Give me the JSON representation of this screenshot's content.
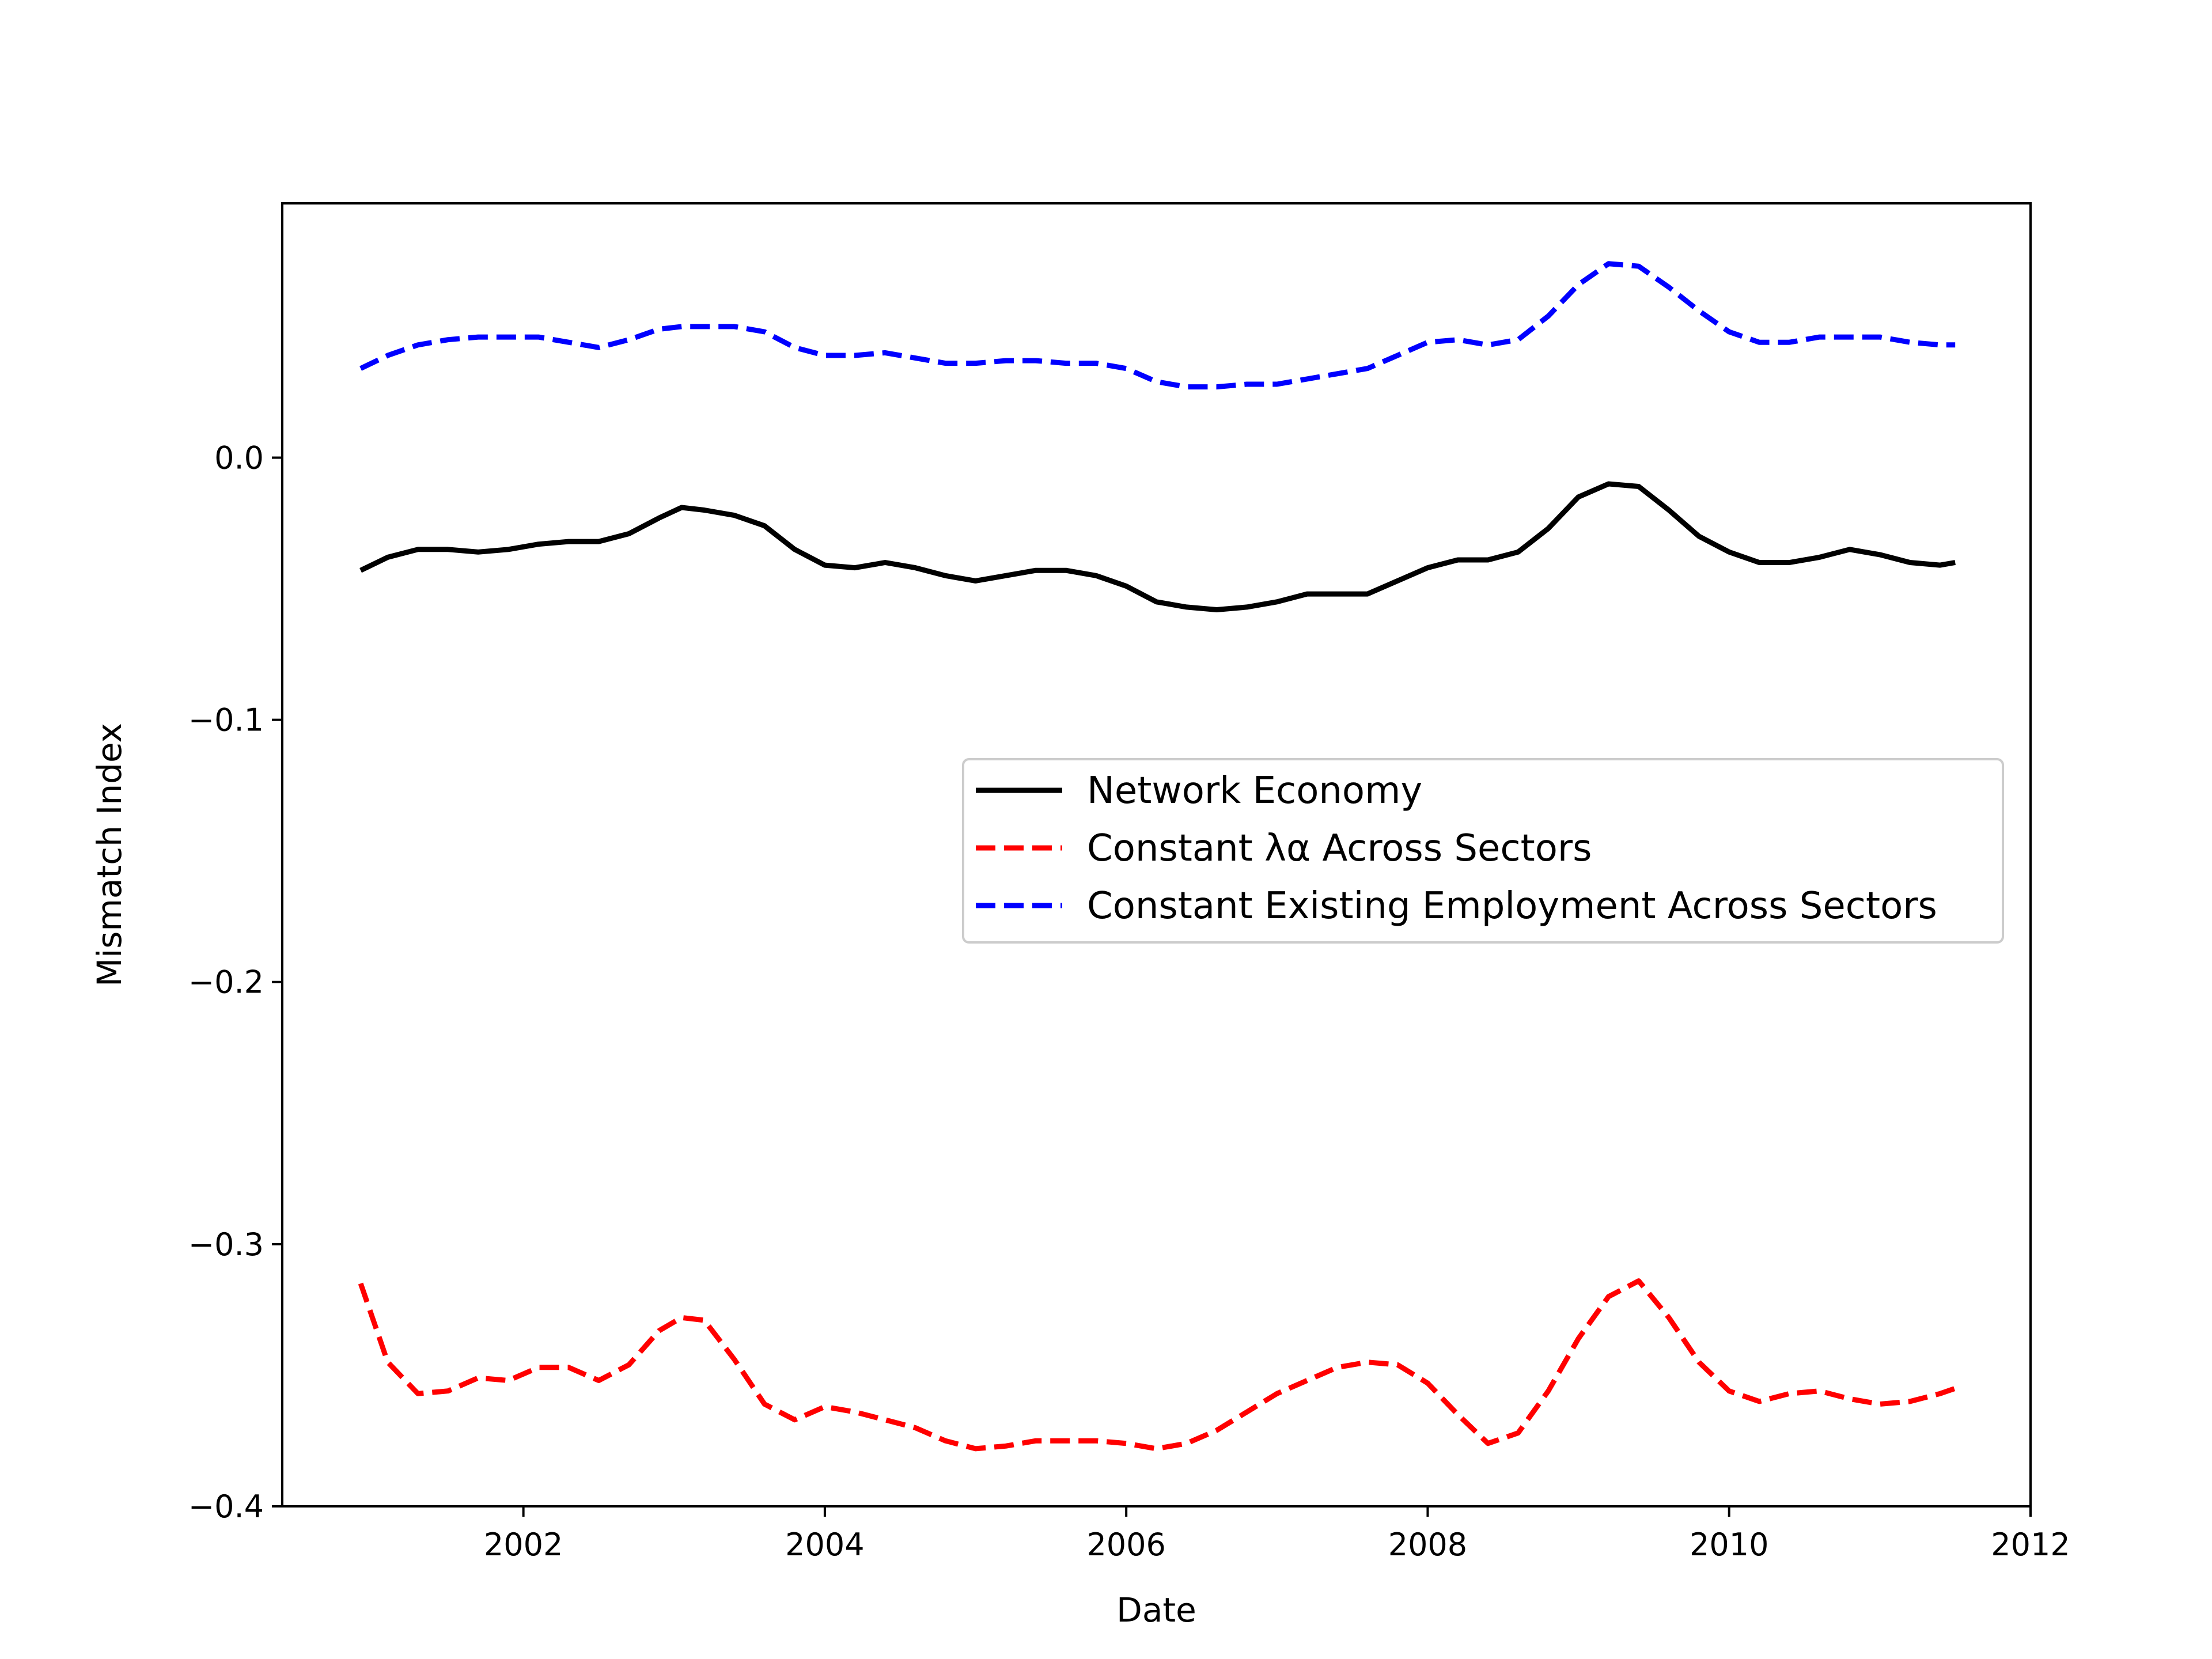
{
  "chart_data": {
    "type": "line",
    "title": "",
    "xlabel": "Date",
    "ylabel": "Mismatch Index",
    "xlim": [
      2000.4,
      2012.0
    ],
    "ylim": [
      -0.4,
      0.097
    ],
    "x_ticks": [
      2002,
      2004,
      2006,
      2008,
      2010,
      2012
    ],
    "x_tick_labels": [
      "2002",
      "2004",
      "2006",
      "2008",
      "2010",
      "2012"
    ],
    "y_ticks": [
      0.0,
      -0.1,
      -0.2,
      -0.3,
      -0.4
    ],
    "y_tick_labels": [
      "0.0",
      "−0.1",
      "−0.2",
      "−0.3",
      "−0.4"
    ],
    "grid": false,
    "legend_position": "center-right",
    "series": [
      {
        "name": "Network Economy",
        "color": "#000000",
        "style": "solid",
        "x": [
          2000.92,
          2001.1,
          2001.3,
          2001.5,
          2001.7,
          2001.9,
          2002.1,
          2002.3,
          2002.5,
          2002.7,
          2002.9,
          2003.05,
          2003.2,
          2003.4,
          2003.6,
          2003.8,
          2004.0,
          2004.2,
          2004.4,
          2004.6,
          2004.8,
          2005.0,
          2005.2,
          2005.4,
          2005.6,
          2005.8,
          2006.0,
          2006.2,
          2006.4,
          2006.6,
          2006.8,
          2007.0,
          2007.2,
          2007.4,
          2007.6,
          2007.8,
          2008.0,
          2008.2,
          2008.4,
          2008.6,
          2008.8,
          2009.0,
          2009.2,
          2009.4,
          2009.6,
          2009.8,
          2010.0,
          2010.2,
          2010.4,
          2010.6,
          2010.8,
          2011.0,
          2011.2,
          2011.4,
          2011.5
        ],
        "values": [
          -0.043,
          -0.038,
          -0.035,
          -0.035,
          -0.036,
          -0.035,
          -0.033,
          -0.032,
          -0.032,
          -0.029,
          -0.023,
          -0.019,
          -0.02,
          -0.022,
          -0.026,
          -0.035,
          -0.041,
          -0.042,
          -0.04,
          -0.042,
          -0.045,
          -0.047,
          -0.045,
          -0.043,
          -0.043,
          -0.045,
          -0.049,
          -0.055,
          -0.057,
          -0.058,
          -0.057,
          -0.055,
          -0.052,
          -0.052,
          -0.052,
          -0.047,
          -0.042,
          -0.039,
          -0.039,
          -0.036,
          -0.027,
          -0.015,
          -0.01,
          -0.011,
          -0.02,
          -0.03,
          -0.036,
          -0.04,
          -0.04,
          -0.038,
          -0.035,
          -0.037,
          -0.04,
          -0.041,
          -0.04
        ]
      },
      {
        "name": "Constant λα Across Sectors",
        "color": "#ff0000",
        "style": "dashed",
        "x": [
          2000.92,
          2001.1,
          2001.3,
          2001.5,
          2001.7,
          2001.9,
          2002.1,
          2002.3,
          2002.5,
          2002.7,
          2002.9,
          2003.05,
          2003.2,
          2003.4,
          2003.6,
          2003.8,
          2004.0,
          2004.2,
          2004.4,
          2004.6,
          2004.8,
          2005.0,
          2005.2,
          2005.4,
          2005.6,
          2005.8,
          2006.0,
          2006.2,
          2006.4,
          2006.6,
          2006.8,
          2007.0,
          2007.2,
          2007.4,
          2007.6,
          2007.8,
          2008.0,
          2008.2,
          2008.4,
          2008.6,
          2008.8,
          2009.0,
          2009.2,
          2009.4,
          2009.6,
          2009.8,
          2010.0,
          2010.2,
          2010.4,
          2010.6,
          2010.8,
          2011.0,
          2011.2,
          2011.4,
          2011.5
        ],
        "values": [
          -0.315,
          -0.345,
          -0.357,
          -0.356,
          -0.351,
          -0.352,
          -0.347,
          -0.347,
          -0.352,
          -0.346,
          -0.333,
          -0.328,
          -0.329,
          -0.344,
          -0.361,
          -0.367,
          -0.362,
          -0.364,
          -0.367,
          -0.37,
          -0.375,
          -0.378,
          -0.377,
          -0.375,
          -0.375,
          -0.375,
          -0.376,
          -0.378,
          -0.376,
          -0.371,
          -0.364,
          -0.357,
          -0.352,
          -0.347,
          -0.345,
          -0.346,
          -0.353,
          -0.365,
          -0.376,
          -0.372,
          -0.356,
          -0.336,
          -0.32,
          -0.314,
          -0.328,
          -0.345,
          -0.356,
          -0.36,
          -0.357,
          -0.356,
          -0.359,
          -0.361,
          -0.36,
          -0.357,
          -0.355
        ]
      },
      {
        "name": "Constant Existing Employment Across Sectors",
        "color": "#0000ff",
        "style": "dashed",
        "x": [
          2000.92,
          2001.1,
          2001.3,
          2001.5,
          2001.7,
          2001.9,
          2002.1,
          2002.3,
          2002.5,
          2002.7,
          2002.9,
          2003.05,
          2003.2,
          2003.4,
          2003.6,
          2003.8,
          2004.0,
          2004.2,
          2004.4,
          2004.6,
          2004.8,
          2005.0,
          2005.2,
          2005.4,
          2005.6,
          2005.8,
          2006.0,
          2006.2,
          2006.4,
          2006.6,
          2006.8,
          2007.0,
          2007.2,
          2007.4,
          2007.6,
          2007.8,
          2008.0,
          2008.2,
          2008.4,
          2008.6,
          2008.8,
          2009.0,
          2009.2,
          2009.4,
          2009.6,
          2009.8,
          2010.0,
          2010.2,
          2010.4,
          2010.6,
          2010.8,
          2011.0,
          2011.2,
          2011.4,
          2011.5
        ],
        "values": [
          0.034,
          0.039,
          0.043,
          0.045,
          0.046,
          0.046,
          0.046,
          0.044,
          0.042,
          0.045,
          0.049,
          0.05,
          0.05,
          0.05,
          0.048,
          0.042,
          0.039,
          0.039,
          0.04,
          0.038,
          0.036,
          0.036,
          0.037,
          0.037,
          0.036,
          0.036,
          0.034,
          0.029,
          0.027,
          0.027,
          0.028,
          0.028,
          0.03,
          0.032,
          0.034,
          0.039,
          0.044,
          0.045,
          0.043,
          0.045,
          0.054,
          0.066,
          0.074,
          0.073,
          0.065,
          0.056,
          0.048,
          0.044,
          0.044,
          0.046,
          0.046,
          0.046,
          0.044,
          0.043,
          0.043
        ]
      }
    ]
  }
}
